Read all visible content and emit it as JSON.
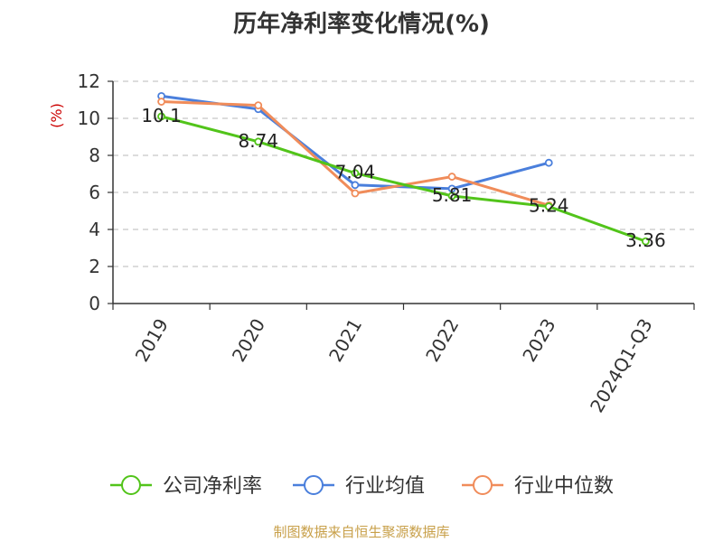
{
  "chart_data": {
    "type": "line",
    "title": "历年净利率变化情况(%)",
    "ylabel": "(%)",
    "categories": [
      "2019",
      "2020",
      "2021",
      "2022",
      "2023",
      "2024Q1-Q3"
    ],
    "ylim": [
      0,
      12
    ],
    "yticks": [
      0,
      2,
      4,
      6,
      8,
      10,
      12
    ],
    "grid": true,
    "legend_position": "bottom",
    "series": [
      {
        "name": "公司净利率",
        "color": "#52c41a",
        "values": [
          10.1,
          8.74,
          7.04,
          5.81,
          5.24,
          3.36
        ],
        "labels": [
          "10.1",
          "8.74",
          "7.04",
          "5.81",
          "5.24",
          "3.36"
        ]
      },
      {
        "name": "行业均值",
        "color": "#4a7fdc",
        "values": [
          11.2,
          10.5,
          6.4,
          6.2,
          7.6,
          null
        ]
      },
      {
        "name": "行业中位数",
        "color": "#f08c5a",
        "values": [
          10.9,
          10.7,
          5.95,
          6.85,
          5.3,
          null
        ]
      }
    ]
  },
  "source_text": "制图数据来自恒生聚源数据库"
}
